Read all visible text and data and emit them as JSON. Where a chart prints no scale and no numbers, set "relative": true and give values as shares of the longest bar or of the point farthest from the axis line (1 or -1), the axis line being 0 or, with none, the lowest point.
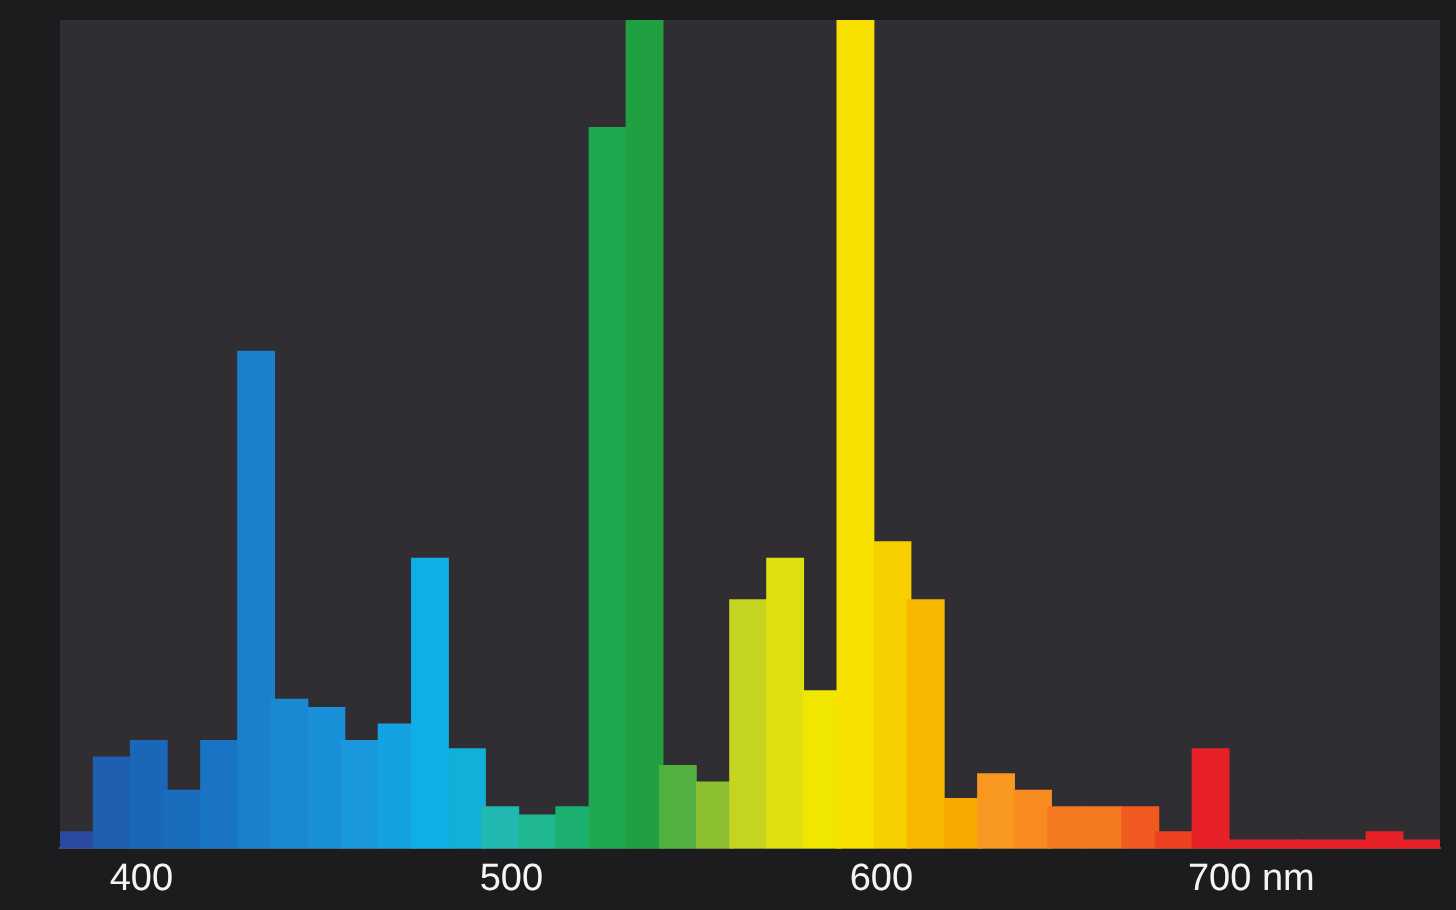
{
  "chart_data": {
    "type": "bar",
    "relative": true,
    "x": [
      383,
      392,
      402,
      411,
      421,
      431,
      440,
      450,
      459,
      469,
      478,
      488,
      497,
      507,
      517,
      526,
      536,
      545,
      555,
      564,
      574,
      584,
      593,
      603,
      612,
      622,
      631,
      641,
      650,
      660,
      670,
      679,
      689,
      698,
      708,
      717,
      727,
      736,
      746
    ],
    "values": [
      0.02,
      0.11,
      0.13,
      0.07,
      0.13,
      0.6,
      0.18,
      0.17,
      0.13,
      0.15,
      0.35,
      0.12,
      0.05,
      0.04,
      0.05,
      0.87,
      1,
      0.1,
      0.08,
      0.3,
      0.35,
      0.19,
      1,
      0.37,
      0.3,
      0.06,
      0.09,
      0.07,
      0.05,
      0.05,
      0.05,
      0.02,
      0.12,
      0.01,
      0.01,
      0.01,
      0.01,
      0.02,
      0.01
    ],
    "colors": [
      "#2a4aa0",
      "#1e5fb0",
      "#1a66b8",
      "#1a6cbc",
      "#1a74c4",
      "#1a80cc",
      "#1a88d2",
      "#1a90d8",
      "#1a98de",
      "#14a2e2",
      "#10aee6",
      "#10b0d8",
      "#20b8b0",
      "#20b890",
      "#1cb070",
      "#20a850",
      "#20a040",
      "#50b040",
      "#8cc030",
      "#c4d420",
      "#e0e010",
      "#f0e600",
      "#f8e000",
      "#f8d000",
      "#f8b800",
      "#f8a800",
      "#f89820",
      "#f88c20",
      "#f47820",
      "#f47820",
      "#f05a20",
      "#ec4020",
      "#e82028",
      "#e82028",
      "#e82028",
      "#e82028",
      "#e82028",
      "#e82028",
      "#e82028"
    ],
    "xlim": [
      378,
      751
    ],
    "xticks": [
      400,
      500,
      600,
      {
        "value": 700,
        "label": "700 nm"
      }
    ]
  }
}
